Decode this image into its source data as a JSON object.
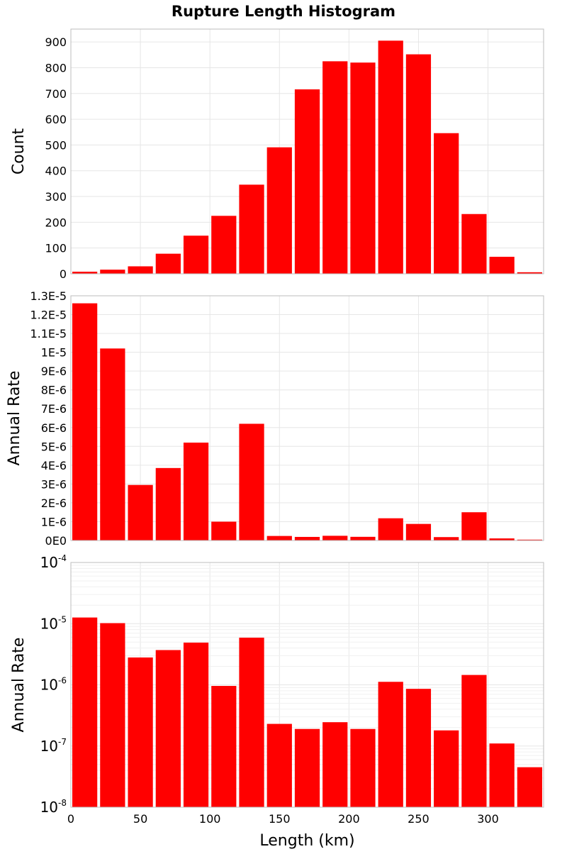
{
  "chart_data": [
    {
      "type": "bar",
      "title": "Rupture Length Histogram",
      "ylabel": "Count",
      "xlabel": "",
      "xlim": [
        0,
        340
      ],
      "ylim": [
        0,
        950
      ],
      "y_scale": "linear",
      "bar_color": "#ff0000",
      "grid": true,
      "x_ticks": [
        0,
        50,
        100,
        150,
        200,
        250,
        300
      ],
      "x_tick_labels_shown": false,
      "y_ticks": [
        0,
        100,
        200,
        300,
        400,
        500,
        600,
        700,
        800,
        900
      ],
      "y_tick_labels": [
        "0",
        "100",
        "200",
        "300",
        "400",
        "500",
        "600",
        "700",
        "800",
        "900"
      ],
      "bins": [
        {
          "x": 10,
          "value": 8
        },
        {
          "x": 30,
          "value": 16
        },
        {
          "x": 50,
          "value": 29
        },
        {
          "x": 70,
          "value": 78
        },
        {
          "x": 90,
          "value": 148
        },
        {
          "x": 110,
          "value": 225
        },
        {
          "x": 130,
          "value": 346
        },
        {
          "x": 150,
          "value": 491
        },
        {
          "x": 170,
          "value": 716
        },
        {
          "x": 190,
          "value": 825
        },
        {
          "x": 210,
          "value": 820
        },
        {
          "x": 230,
          "value": 905
        },
        {
          "x": 250,
          "value": 852
        },
        {
          "x": 270,
          "value": 546
        },
        {
          "x": 290,
          "value": 232
        },
        {
          "x": 310,
          "value": 66
        },
        {
          "x": 330,
          "value": 6
        }
      ]
    },
    {
      "type": "bar",
      "title": "",
      "ylabel": "Annual Rate",
      "xlabel": "",
      "xlim": [
        0,
        340
      ],
      "ylim": [
        0,
        1.3e-05
      ],
      "y_scale": "linear",
      "bar_color": "#ff0000",
      "grid": true,
      "x_ticks": [
        0,
        50,
        100,
        150,
        200,
        250,
        300
      ],
      "x_tick_labels_shown": false,
      "y_ticks": [
        0,
        1e-06,
        2e-06,
        3e-06,
        4e-06,
        5e-06,
        6e-06,
        7e-06,
        8e-06,
        9e-06,
        1e-05,
        1.1e-05,
        1.2e-05,
        1.3e-05
      ],
      "y_tick_labels": [
        "0E0",
        "1E-6",
        "2E-6",
        "3E-6",
        "4E-6",
        "5E-6",
        "6E-6",
        "7E-6",
        "8E-6",
        "9E-6",
        "1E-5",
        "1.1E-5",
        "1.2E-5",
        "1.3E-5"
      ],
      "bins": [
        {
          "x": 10,
          "value": 1.26e-05
        },
        {
          "x": 30,
          "value": 1.02e-05
        },
        {
          "x": 50,
          "value": 2.95e-06
        },
        {
          "x": 70,
          "value": 3.85e-06
        },
        {
          "x": 90,
          "value": 5.2e-06
        },
        {
          "x": 110,
          "value": 1e-06
        },
        {
          "x": 130,
          "value": 6.2e-06
        },
        {
          "x": 150,
          "value": 2.4e-07
        },
        {
          "x": 170,
          "value": 1.9e-07
        },
        {
          "x": 190,
          "value": 2.5e-07
        },
        {
          "x": 210,
          "value": 1.95e-07
        },
        {
          "x": 230,
          "value": 1.18e-06
        },
        {
          "x": 250,
          "value": 8.8e-07
        },
        {
          "x": 270,
          "value": 1.8e-07
        },
        {
          "x": 290,
          "value": 1.5e-06
        },
        {
          "x": 310,
          "value": 1.1e-07
        },
        {
          "x": 330,
          "value": 4.5e-08
        }
      ]
    },
    {
      "type": "bar",
      "title": "",
      "ylabel": "Annual Rate",
      "xlabel": "Length (km)",
      "xlim": [
        0,
        340
      ],
      "ylim": [
        1e-08,
        0.0001
      ],
      "y_scale": "log",
      "bar_color": "#ff0000",
      "grid": true,
      "x_ticks": [
        0,
        50,
        100,
        150,
        200,
        250,
        300
      ],
      "x_tick_labels": [
        "0",
        "50",
        "100",
        "150",
        "200",
        "250",
        "300"
      ],
      "x_tick_labels_shown": true,
      "y_ticks": [
        1e-08,
        1e-07,
        1e-06,
        1e-05,
        0.0001
      ],
      "y_tick_base": "10",
      "y_tick_exponents": [
        "-8",
        "-7",
        "-6",
        "-5",
        "-4"
      ],
      "bins": [
        {
          "x": 10,
          "value": 1.26e-05
        },
        {
          "x": 30,
          "value": 1.02e-05
        },
        {
          "x": 50,
          "value": 2.8e-06
        },
        {
          "x": 70,
          "value": 3.7e-06
        },
        {
          "x": 90,
          "value": 4.9e-06
        },
        {
          "x": 110,
          "value": 9.6e-07
        },
        {
          "x": 130,
          "value": 5.9e-06
        },
        {
          "x": 150,
          "value": 2.3e-07
        },
        {
          "x": 170,
          "value": 1.9e-07
        },
        {
          "x": 190,
          "value": 2.45e-07
        },
        {
          "x": 210,
          "value": 1.9e-07
        },
        {
          "x": 230,
          "value": 1.12e-06
        },
        {
          "x": 250,
          "value": 8.6e-07
        },
        {
          "x": 270,
          "value": 1.8e-07
        },
        {
          "x": 290,
          "value": 1.45e-06
        },
        {
          "x": 310,
          "value": 1.1e-07
        },
        {
          "x": 330,
          "value": 4.5e-08
        }
      ]
    }
  ]
}
